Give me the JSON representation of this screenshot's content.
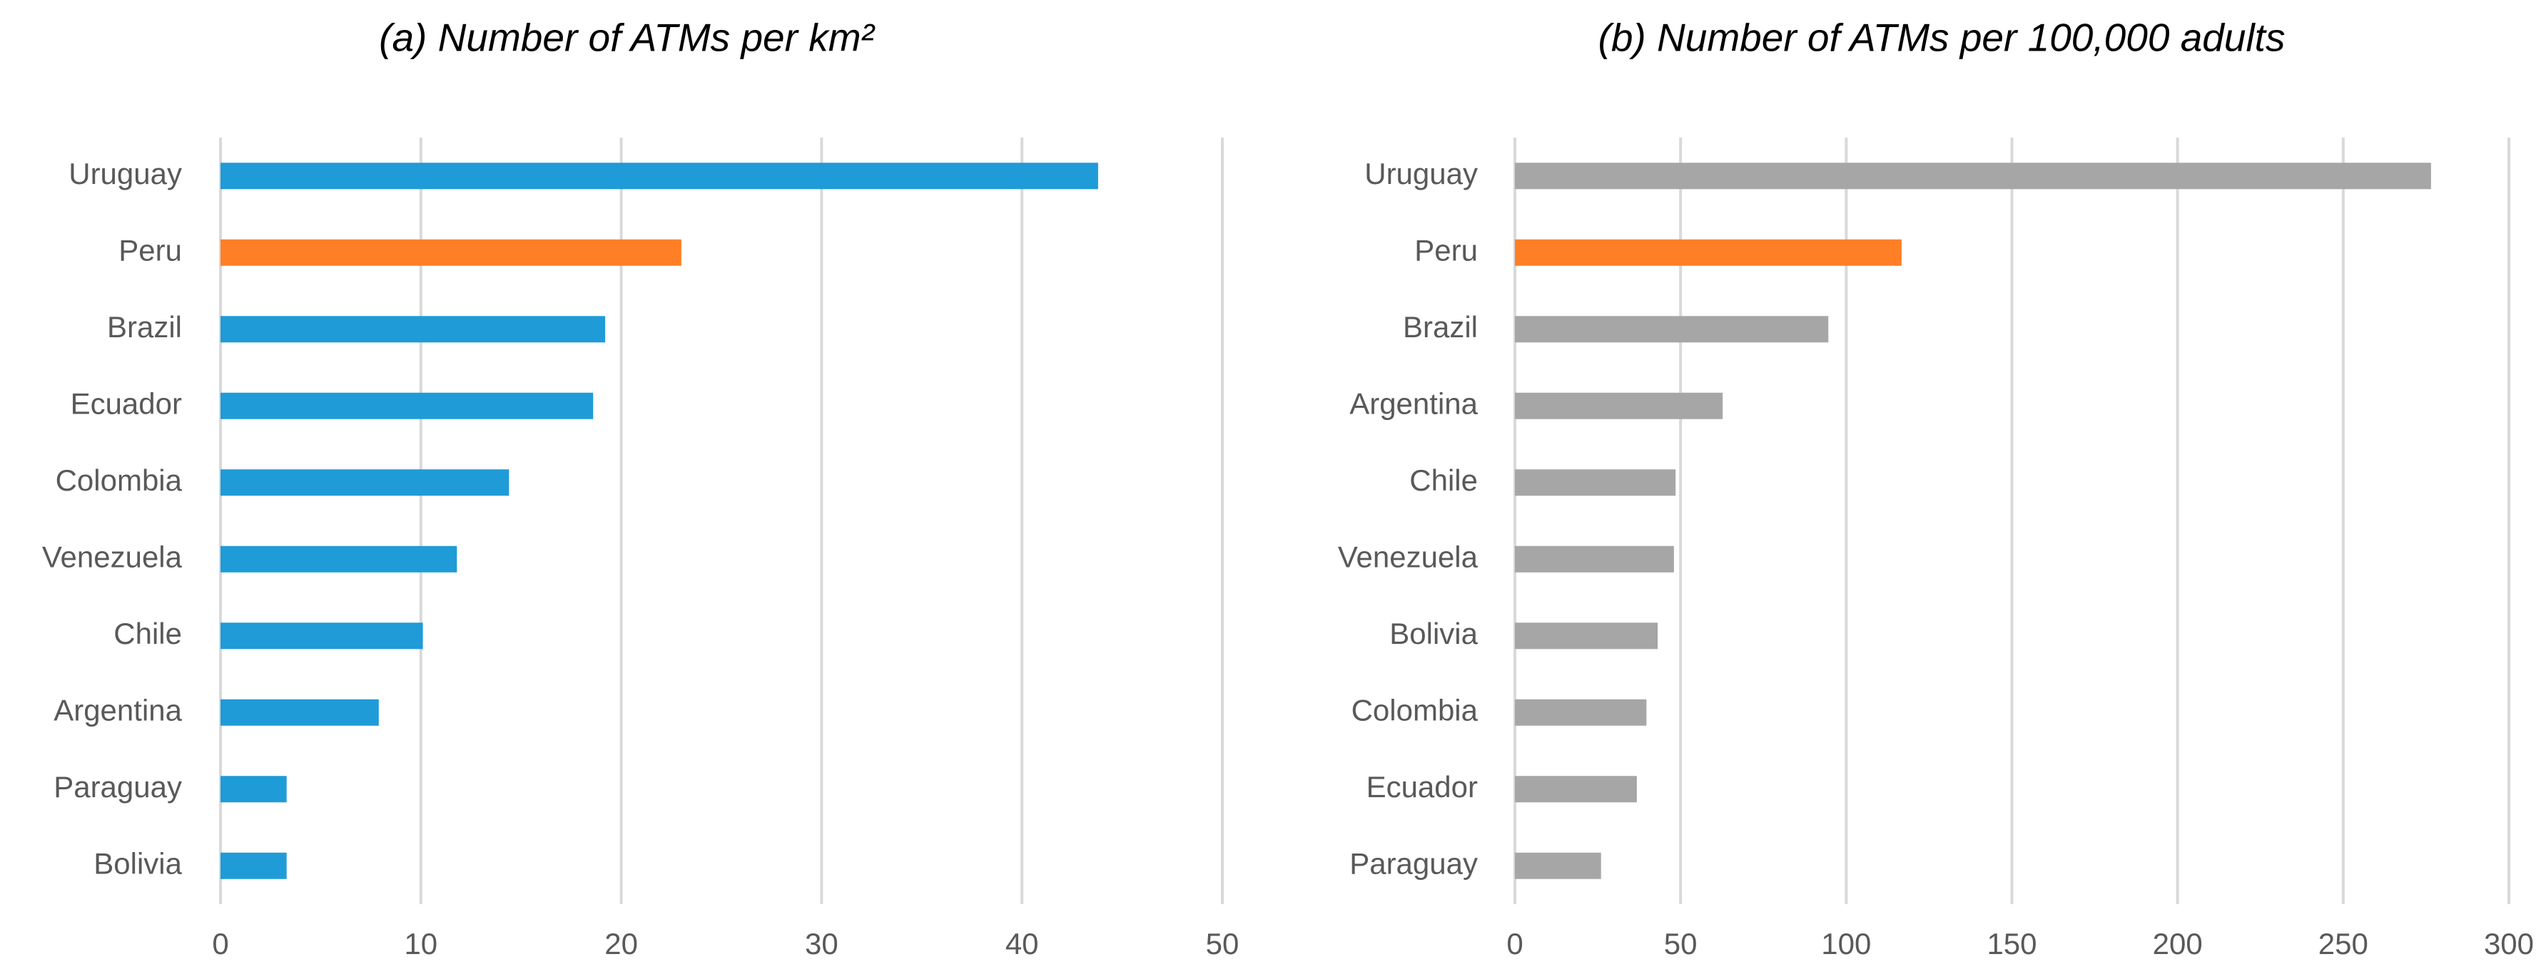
{
  "chart_data": [
    {
      "type": "bar",
      "orientation": "horizontal",
      "title": "(a) Number of ATMs per km²",
      "categories": [
        "Uruguay",
        "Peru",
        "Brazil",
        "Ecuador",
        "Colombia",
        "Venezuela",
        "Chile",
        "Argentina",
        "Paraguay",
        "Bolivia"
      ],
      "values": [
        43.8,
        23.0,
        19.2,
        18.6,
        14.4,
        11.8,
        10.1,
        7.9,
        3.3,
        3.3
      ],
      "colors": [
        "#1f9bd7",
        "#ff7f27",
        "#1f9bd7",
        "#1f9bd7",
        "#1f9bd7",
        "#1f9bd7",
        "#1f9bd7",
        "#1f9bd7",
        "#1f9bd7",
        "#1f9bd7"
      ],
      "xlim": [
        0,
        50
      ],
      "xticks": [
        0,
        10,
        20,
        30,
        40,
        50
      ],
      "grid": true
    },
    {
      "type": "bar",
      "orientation": "horizontal",
      "title": "(b) Number of ATMs per 100,000 adults",
      "categories": [
        "Uruguay",
        "Peru",
        "Brazil",
        "Argentina",
        "Chile",
        "Venezuela",
        "Bolivia",
        "Colombia",
        "Ecuador",
        "Paraguay"
      ],
      "values": [
        276.5,
        116.7,
        94.6,
        62.7,
        48.5,
        48.0,
        43.1,
        39.7,
        36.8,
        26.0
      ],
      "colors": [
        "#a6a6a6",
        "#ff7f27",
        "#a6a6a6",
        "#a6a6a6",
        "#a6a6a6",
        "#a6a6a6",
        "#a6a6a6",
        "#a6a6a6",
        "#a6a6a6",
        "#a6a6a6"
      ],
      "xlim": [
        0,
        300
      ],
      "xticks": [
        0,
        50,
        100,
        150,
        200,
        250,
        300
      ],
      "grid": true
    }
  ]
}
